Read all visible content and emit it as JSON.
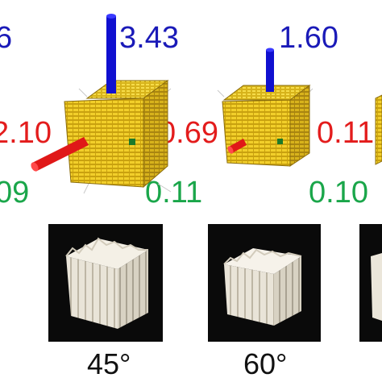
{
  "colors": {
    "blue": "#1a1ab8",
    "red": "#e31c1c",
    "green": "#1aa64a",
    "cube_yellow": "#e8c21a",
    "photo_bg": "#0a0a0a",
    "specimen": "#f1ede3"
  },
  "labels": {
    "left_blue": "6",
    "left_red": "2.10",
    "left_green": "09",
    "mid_blue": "3.43",
    "mid_red": "0.69",
    "mid_green": "0.11",
    "right_blue": "1.60",
    "right_red": "0.11",
    "right_green": "0.10",
    "angle_1": "45°",
    "angle_2": "60°"
  }
}
